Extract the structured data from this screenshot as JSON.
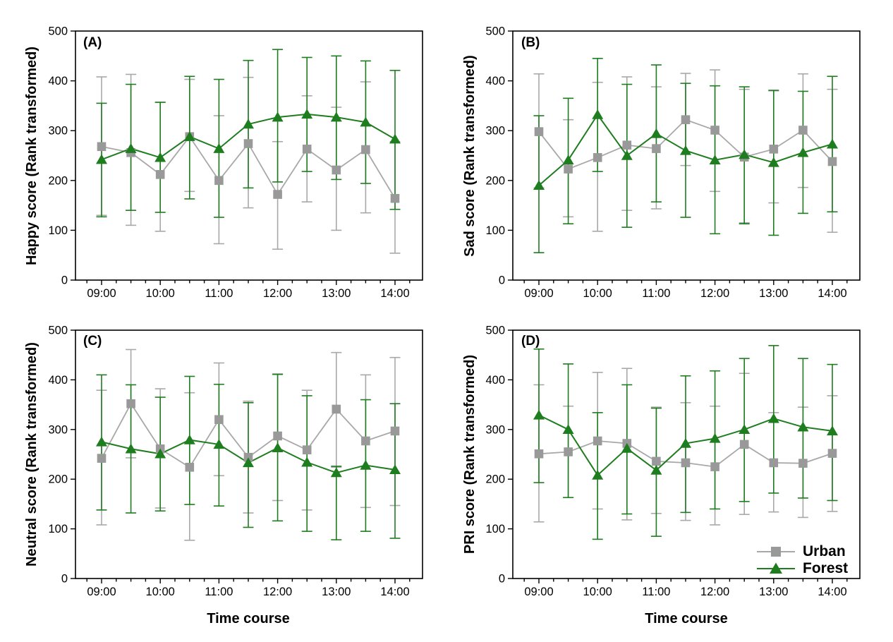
{
  "figure": {
    "background": "#ffffff",
    "colors": {
      "urban_marker": "#999999",
      "urban_line": "#a8a8a8",
      "forest": "#1e7d1e",
      "axis": "#000000"
    },
    "legend": {
      "location": "panel-D-bottom-right",
      "entries": [
        {
          "label": "Urban",
          "marker": "square",
          "color_key": "urban_marker"
        },
        {
          "label": "Forest",
          "marker": "triangle",
          "color_key": "forest"
        }
      ]
    }
  },
  "chart_data": {
    "type": "line",
    "x": [
      "09:00",
      "09:30",
      "10:00",
      "10:30",
      "11:00",
      "11:30",
      "12:00",
      "12:30",
      "13:00",
      "13:30",
      "14:00"
    ],
    "x_major_ticks": [
      "09:00",
      "10:00",
      "11:00",
      "12:00",
      "13:00",
      "14:00"
    ],
    "ylim": [
      0,
      500
    ],
    "yticks": [
      0,
      100,
      200,
      300,
      400,
      500
    ],
    "grid": false,
    "error_bars": true,
    "panels": [
      {
        "label": "(A)",
        "ylabel": "Happy score (Rank transformed)",
        "xlabel": "",
        "show_legend": false,
        "series": [
          {
            "name": "Urban",
            "marker": "square",
            "color_key": "urban",
            "values": [
              268,
              256,
              212,
              288,
              200,
              274,
              172,
              263,
              221,
              262,
              164
            ],
            "err_hi": [
              408,
              413,
              357,
              403,
              330,
              407,
              278,
              370,
              347,
              398,
              278
            ],
            "err_lo": [
              130,
              110,
              98,
              178,
              73,
              145,
              62,
              157,
              100,
              135,
              54
            ]
          },
          {
            "name": "Forest",
            "marker": "triangle",
            "color_key": "forest",
            "values": [
              242,
              264,
              246,
              288,
              264,
              313,
              327,
              333,
              327,
              317,
              283
            ],
            "err_hi": [
              355,
              393,
              357,
              409,
              403,
              441,
              463,
              447,
              450,
              440,
              421
            ],
            "err_lo": [
              127,
              140,
              136,
              163,
              126,
              185,
              197,
              218,
              202,
              194,
              142
            ]
          }
        ]
      },
      {
        "label": "(B)",
        "ylabel": "Sad score (Rank transformed)",
        "xlabel": "",
        "show_legend": false,
        "series": [
          {
            "name": "Urban",
            "marker": "square",
            "color_key": "urban",
            "values": [
              298,
              223,
              246,
              271,
              264,
              322,
              301,
              247,
              263,
              301,
              238
            ],
            "err_hi": [
              414,
              322,
              397,
              408,
              388,
              415,
              422,
              383,
              380,
              414,
              383
            ],
            "err_lo": [
              185,
              127,
              98,
              140,
              143,
              230,
              178,
              115,
              155,
              186,
              96
            ]
          },
          {
            "name": "Forest",
            "marker": "triangle",
            "color_key": "forest",
            "values": [
              190,
              241,
              332,
              250,
              294,
              260,
              241,
              252,
              236,
              256,
              273
            ],
            "err_hi": [
              330,
              365,
              445,
              393,
              432,
              395,
              390,
              388,
              381,
              379,
              409
            ],
            "err_lo": [
              55,
              113,
              218,
              106,
              157,
              126,
              93,
              113,
              90,
              134,
              137
            ]
          }
        ]
      },
      {
        "label": "(C)",
        "ylabel": "Neutral score (Rank transformed)",
        "xlabel": "Time course",
        "show_legend": false,
        "series": [
          {
            "name": "Urban",
            "marker": "square",
            "color_key": "urban",
            "values": [
              242,
              352,
              261,
              224,
              320,
              244,
              287,
              259,
              341,
              277,
              297
            ],
            "err_hi": [
              379,
              461,
              382,
              374,
              434,
              357,
              412,
              379,
              455,
              410,
              445
            ],
            "err_lo": [
              108,
              243,
              142,
              77,
              207,
              132,
              157,
              138,
              224,
              143,
              147
            ]
          },
          {
            "name": "Forest",
            "marker": "triangle",
            "color_key": "forest",
            "values": [
              275,
              261,
              251,
              279,
              270,
              233,
              263,
              234,
              213,
              228,
              219
            ],
            "err_hi": [
              410,
              390,
              365,
              407,
              391,
              354,
              411,
              368,
              226,
              360,
              352
            ],
            "err_lo": [
              138,
              132,
              136,
              149,
              146,
              103,
              116,
              95,
              78,
              95,
              81
            ]
          }
        ]
      },
      {
        "label": "(D)",
        "ylabel": "PRI score (Rank transformed)",
        "xlabel": "Time course",
        "show_legend": true,
        "series": [
          {
            "name": "Urban",
            "marker": "square",
            "color_key": "urban",
            "values": [
              251,
              255,
              277,
              272,
              236,
              233,
              225,
              270,
              233,
              232,
              252
            ],
            "err_hi": [
              390,
              347,
              415,
              423,
              345,
              354,
              347,
              413,
              334,
              345,
              368
            ],
            "err_lo": [
              114,
              163,
              140,
              118,
              131,
              117,
              108,
              129,
              134,
              123,
              135
            ]
          },
          {
            "name": "Forest",
            "marker": "triangle",
            "color_key": "forest",
            "values": [
              329,
              300,
              208,
              262,
              218,
              272,
              282,
              300,
              322,
              305,
              297
            ],
            "err_hi": [
              462,
              432,
              334,
              390,
              343,
              408,
              418,
              443,
              469,
              443,
              431
            ],
            "err_lo": [
              193,
              163,
              79,
              130,
              85,
              133,
              140,
              155,
              172,
              162,
              157
            ]
          }
        ]
      }
    ]
  }
}
